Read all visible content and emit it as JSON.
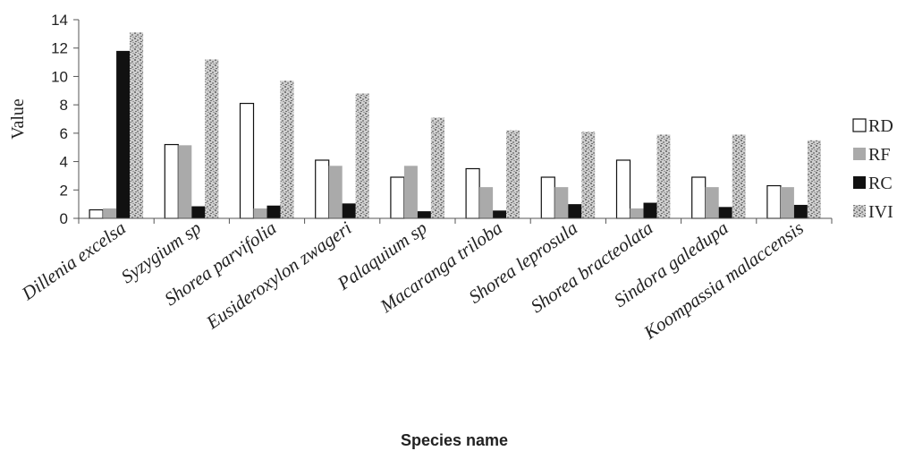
{
  "chart_data": {
    "type": "bar",
    "title": "",
    "xlabel": "Species name",
    "ylabel": "Value",
    "ylim": [
      0,
      14
    ],
    "yticks": [
      0,
      2,
      4,
      6,
      8,
      10,
      12,
      14
    ],
    "grid": false,
    "legend_position": "right",
    "categories": [
      "Dillenia excelsa",
      "Syzygium sp",
      "Shorea parvifolia",
      "Eusideroxylon zwageri",
      "Palaquium sp",
      "Macaranga triloba",
      "Shorea leprosula",
      "Shorea bracteolata",
      "Sindora galedupa",
      "Koompassia malaccensis"
    ],
    "series": [
      {
        "name": "RD",
        "color": "#ffffff",
        "values": [
          0.6,
          5.2,
          8.1,
          4.1,
          2.9,
          3.5,
          2.9,
          4.1,
          2.9,
          2.3
        ]
      },
      {
        "name": "RF",
        "color": "#aaaaaa",
        "values": [
          0.7,
          5.15,
          0.7,
          3.7,
          3.7,
          2.2,
          2.2,
          0.7,
          2.2,
          2.2
        ]
      },
      {
        "name": "RC",
        "color": "#111111",
        "values": [
          11.8,
          0.85,
          0.9,
          1.05,
          0.5,
          0.55,
          1.0,
          1.1,
          0.8,
          0.95
        ]
      },
      {
        "name": "IVI",
        "color": "#c4c4c4",
        "pattern": "speckle",
        "values": [
          13.1,
          11.2,
          9.7,
          8.8,
          7.1,
          6.2,
          6.1,
          5.9,
          5.9,
          5.5
        ]
      }
    ]
  }
}
